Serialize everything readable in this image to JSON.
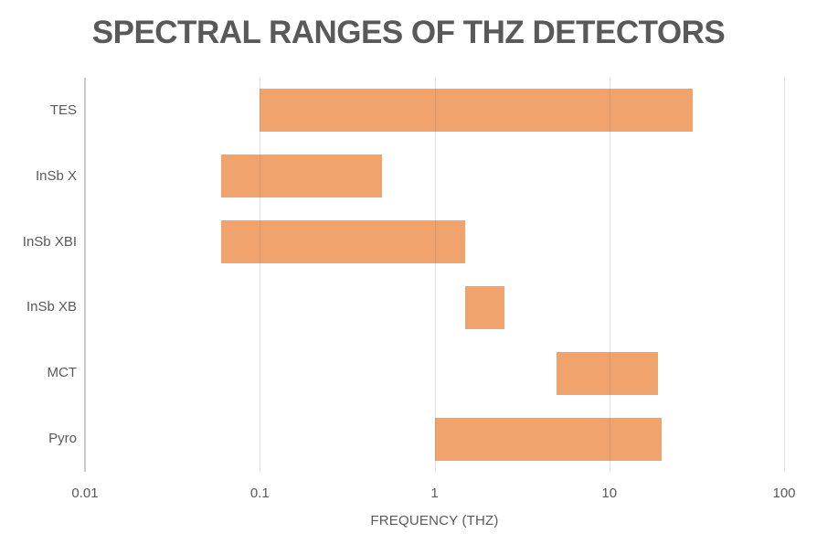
{
  "title": "SPECTRAL RANGES OF THZ DETECTORS",
  "chart_data": {
    "type": "bar",
    "subtype": "horizontal-range-bars",
    "title": "SPECTRAL RANGES OF THZ DETECTORS",
    "xlabel": "FREQUENCY (THZ)",
    "x_scale": "log10",
    "xlim": [
      0.01,
      100
    ],
    "x_ticks": [
      0.01,
      0.1,
      1,
      10,
      100
    ],
    "x_tick_labels": [
      "0.01",
      "0.1",
      "1",
      "10",
      "100"
    ],
    "grid": "vertical gridlines at decade ticks, category axis line on left",
    "legend": "none",
    "categories": [
      "TES",
      "InSb X",
      "InSb XBI",
      "InSb XB",
      "MCT",
      "Pyro"
    ],
    "series": [
      {
        "name": "spectral-range",
        "ranges_thz": [
          {
            "category": "TES",
            "from": 0.1,
            "to": 30
          },
          {
            "category": "InSb X",
            "from": 0.06,
            "to": 0.5
          },
          {
            "category": "InSb XBI",
            "from": 0.06,
            "to": 1.5
          },
          {
            "category": "InSb XB",
            "from": 1.5,
            "to": 2.5
          },
          {
            "category": "MCT",
            "from": 5,
            "to": 19
          },
          {
            "category": "Pyro",
            "from": 1,
            "to": 20
          }
        ]
      }
    ],
    "bar_color": "#F0A36C"
  },
  "colors": {
    "background": "#FFFFFF",
    "bar_fill": "#F0A36C",
    "title_text": "#595959",
    "axis_text": "#595959",
    "axis_line": "#C9C9C9",
    "gridline": "#D9D9D9"
  }
}
